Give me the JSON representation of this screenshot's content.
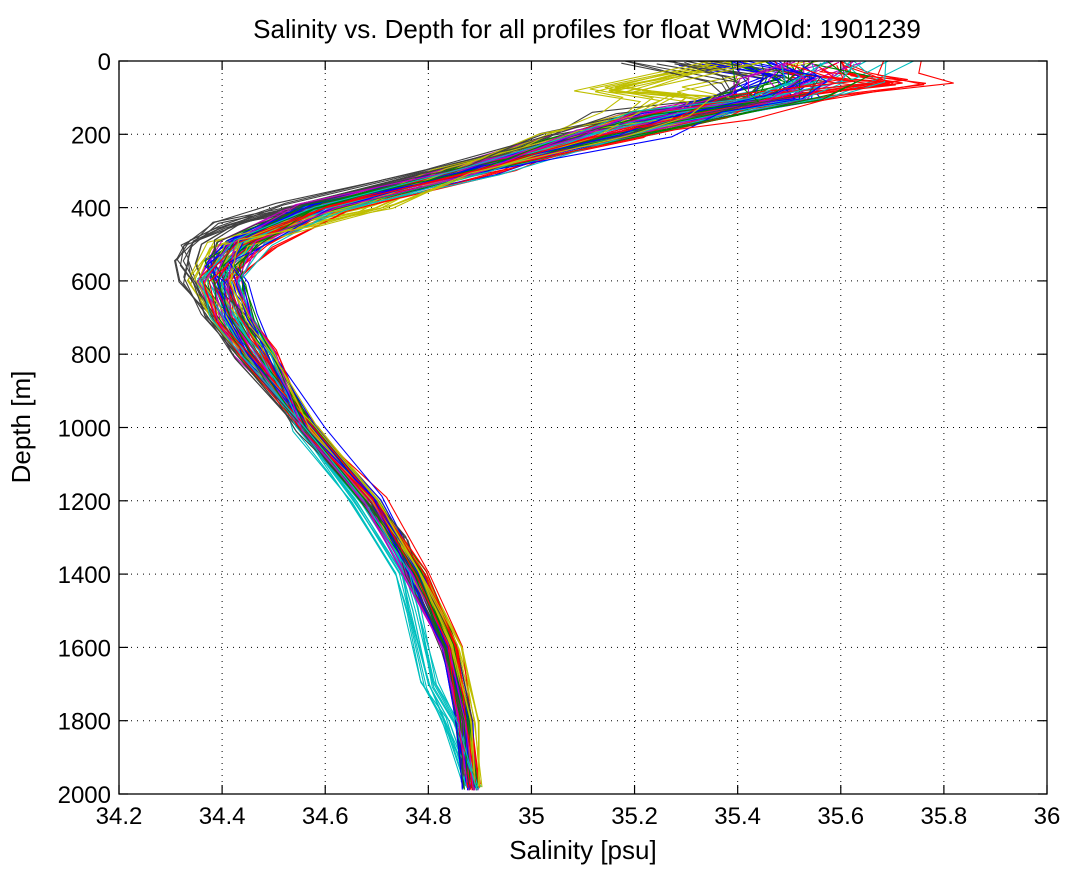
{
  "chart_data": {
    "type": "line",
    "title": "Salinity vs. Depth for all profiles for float WMOId: 1901239",
    "xlabel": "Salinity [psu]",
    "ylabel": "Depth [m]",
    "xlim": [
      34.2,
      36
    ],
    "ylim": [
      0,
      2000
    ],
    "y_reversed": true,
    "x_ticks": [
      "34.2",
      "34.4",
      "34.6",
      "34.8",
      "35",
      "35.2",
      "35.4",
      "35.6",
      "35.8",
      "36"
    ],
    "y_ticks": [
      "0",
      "200",
      "400",
      "600",
      "800",
      "1000",
      "1200",
      "1400",
      "1600",
      "1800",
      "2000"
    ],
    "grid": true,
    "grid_style": "dotted",
    "legend": "none",
    "series_colors": [
      "#0000ff",
      "#008000",
      "#ff0000",
      "#00bfbf",
      "#bf00bf",
      "#bfbf00",
      "#404040"
    ],
    "series_count_note": "many overlapping profiles",
    "series": [
      {
        "color": "#0000ff",
        "depth": [
          0,
          50,
          100,
          150,
          200,
          300,
          400,
          500,
          550,
          600,
          700,
          800,
          1000,
          1200,
          1400,
          1600,
          1800,
          1980
        ],
        "salinity": [
          35.45,
          35.55,
          35.5,
          35.35,
          35.2,
          34.9,
          34.6,
          34.45,
          34.4,
          34.42,
          34.44,
          34.48,
          34.58,
          34.7,
          34.78,
          34.84,
          34.87,
          34.88
        ]
      },
      {
        "color": "#008000",
        "depth": [
          0,
          50,
          100,
          150,
          200,
          300,
          400,
          500,
          550,
          600,
          700,
          800,
          1000,
          1200,
          1400,
          1600,
          1800,
          1980
        ],
        "salinity": [
          35.5,
          35.52,
          35.48,
          35.3,
          35.15,
          34.88,
          34.58,
          34.44,
          34.41,
          34.41,
          34.43,
          34.47,
          34.57,
          34.69,
          34.78,
          34.84,
          34.87,
          34.885
        ]
      },
      {
        "color": "#ff0000",
        "depth": [
          0,
          40,
          60,
          100,
          150,
          200,
          300,
          400,
          500,
          600,
          700,
          800,
          1000,
          1200,
          1400,
          1600,
          1800,
          1980
        ],
        "salinity": [
          35.6,
          35.62,
          35.72,
          35.5,
          35.32,
          35.18,
          34.92,
          34.62,
          34.46,
          34.4,
          34.42,
          34.47,
          34.57,
          34.7,
          34.79,
          34.85,
          34.875,
          34.89
        ]
      },
      {
        "color": "#00bfbf",
        "depth": [
          0,
          50,
          100,
          150,
          200,
          300,
          400,
          500,
          600,
          700,
          800,
          1000,
          1200,
          1400,
          1500,
          1700,
          1800,
          1980
        ],
        "salinity": [
          35.62,
          35.58,
          35.45,
          35.3,
          35.16,
          34.9,
          34.6,
          34.45,
          34.39,
          34.42,
          34.47,
          34.55,
          34.66,
          34.75,
          34.77,
          34.8,
          34.84,
          34.885
        ]
      },
      {
        "color": "#bf00bf",
        "depth": [
          0,
          50,
          100,
          150,
          200,
          300,
          400,
          500,
          600,
          700,
          800,
          1000,
          1200,
          1400,
          1600,
          1800,
          1980
        ],
        "salinity": [
          35.55,
          35.5,
          35.45,
          35.28,
          35.12,
          34.86,
          34.58,
          34.43,
          34.39,
          34.42,
          34.46,
          34.56,
          34.68,
          34.76,
          34.83,
          34.87,
          34.88
        ]
      },
      {
        "color": "#bfbf00",
        "depth": [
          0,
          80,
          100,
          150,
          200,
          300,
          350,
          400,
          450,
          500,
          600,
          700,
          800,
          1000,
          1200,
          1400,
          1600,
          1800,
          1980
        ],
        "salinity": [
          35.4,
          35.15,
          35.3,
          35.25,
          35.1,
          34.86,
          34.78,
          34.7,
          34.55,
          34.42,
          34.38,
          34.42,
          34.47,
          34.57,
          34.69,
          34.78,
          34.85,
          34.88,
          34.89
        ]
      },
      {
        "color": "#404040",
        "depth": [
          0,
          50,
          100,
          150,
          200,
          300,
          400,
          450,
          500,
          550,
          600,
          700,
          800,
          1000,
          1200,
          1300,
          1400,
          1600,
          1800,
          1980
        ],
        "salinity": [
          35.3,
          35.45,
          35.42,
          35.25,
          35.1,
          34.82,
          34.55,
          34.42,
          34.36,
          34.35,
          34.36,
          34.4,
          34.46,
          34.56,
          34.68,
          34.75,
          34.77,
          34.84,
          34.87,
          34.88
        ]
      }
    ]
  }
}
